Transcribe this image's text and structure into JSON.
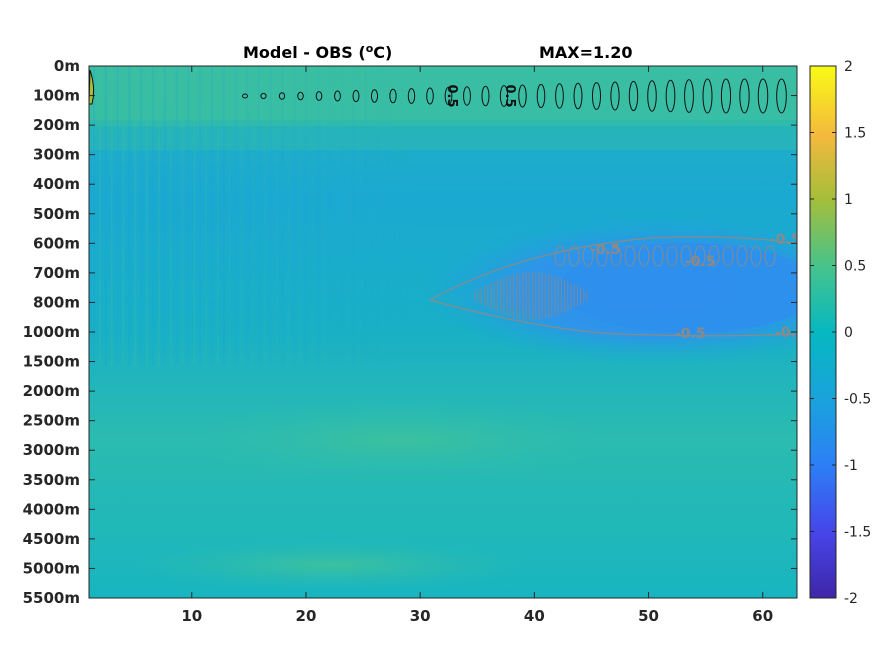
{
  "chart_data": {
    "type": "heatmap",
    "title_left": "Model - OBS (",
    "title_sup": "o",
    "title_unit": "C)",
    "title_right": "MAX=1.20",
    "x_ticks": [
      "10",
      "20",
      "30",
      "40",
      "50",
      "60"
    ],
    "x_tick_values": [
      10,
      20,
      30,
      40,
      50,
      60
    ],
    "x_range": [
      1,
      63
    ],
    "y_ticks": [
      "0m",
      "100m",
      "200m",
      "300m",
      "400m",
      "500m",
      "600m",
      "700m",
      "800m",
      "1000m",
      "1500m",
      "2000m",
      "2500m",
      "3000m",
      "3500m",
      "4000m",
      "4500m",
      "5000m",
      "5500m"
    ],
    "y_reversed": true,
    "colorbar": {
      "range": [
        -2,
        2
      ],
      "ticks": [
        "2",
        "1.5",
        "1",
        "0.5",
        "0",
        "-0.5",
        "-1",
        "-1.5",
        "-2"
      ],
      "tick_values": [
        2,
        1.5,
        1,
        0.5,
        0,
        -0.5,
        -1,
        -1.5,
        -2
      ],
      "colormap": "parula"
    },
    "contour_levels": [
      0.5,
      -0.5
    ],
    "contour_labels": {
      "positive": "0.5",
      "negative": "-0.5"
    },
    "field_summary": {
      "background_value": 0.0,
      "surface_band_value": 0.4,
      "midwater_min_value": -0.65,
      "deep_value": 0.15,
      "max_value": 1.2
    }
  }
}
